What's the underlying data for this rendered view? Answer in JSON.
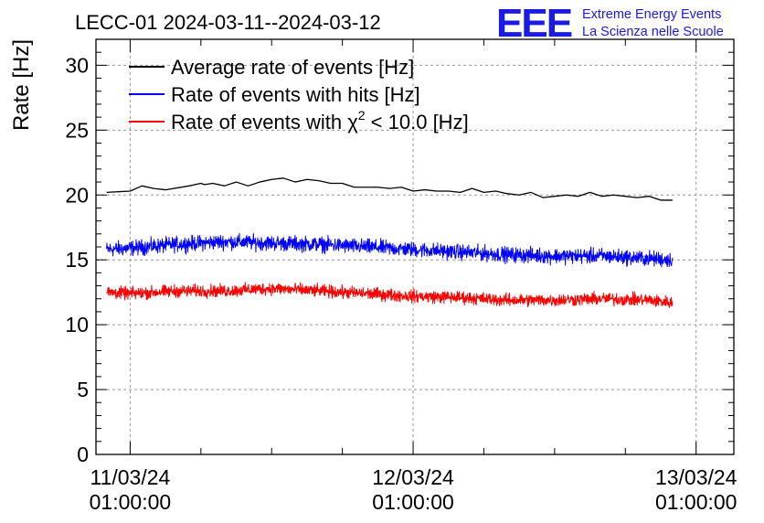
{
  "chart_data": {
    "type": "line",
    "title": "LECC-01 2024-03-11--2024-03-12",
    "ylabel": "Rate [Hz]",
    "xlabel": "",
    "ylim": [
      0,
      32
    ],
    "yticks": [
      0,
      5,
      10,
      15,
      20,
      25,
      30
    ],
    "y_tick_labels": [
      "0",
      "5",
      "10",
      "15",
      "20",
      "25",
      "30"
    ],
    "xlim_hours": [
      -2.9,
      51.2
    ],
    "x_ticks": [
      {
        "hours": 0,
        "date": "11/03/24",
        "time": "01:00:00"
      },
      {
        "hours": 24,
        "date": "12/03/24",
        "time": "01:00:00"
      },
      {
        "hours": 48,
        "date": "13/03/24",
        "time": "01:00:00"
      }
    ],
    "grid": true,
    "legend_position": "top-left",
    "series": [
      {
        "name": "Average rate of events [Hz]",
        "color": "#000000",
        "style": "smooth",
        "hours": [
          -2,
          0,
          1,
          2,
          3,
          5,
          6,
          6.3,
          7,
          8,
          9,
          10,
          11,
          12,
          13,
          14,
          15,
          16,
          17,
          18,
          19,
          20,
          21,
          22,
          23,
          24,
          25,
          26,
          27,
          28,
          29,
          30,
          31,
          32,
          33,
          34,
          35,
          36,
          37,
          38,
          39,
          40,
          41,
          42,
          43,
          44,
          45,
          46
        ],
        "values": [
          20.2,
          20.3,
          20.7,
          20.5,
          20.4,
          20.7,
          20.9,
          20.8,
          20.9,
          20.7,
          21.0,
          20.7,
          21.0,
          21.2,
          21.3,
          21.0,
          21.2,
          21.1,
          20.9,
          20.9,
          20.6,
          20.6,
          20.6,
          20.5,
          20.6,
          20.3,
          20.4,
          20.3,
          20.3,
          20.2,
          20.5,
          20.2,
          20.3,
          20.1,
          20.0,
          20.2,
          19.8,
          19.9,
          20.0,
          19.9,
          20.2,
          19.9,
          20.0,
          19.9,
          19.8,
          19.9,
          19.6,
          19.6
        ]
      },
      {
        "name": "Rate of events with hits [Hz]",
        "color": "#0000ff",
        "style": "noisy",
        "noise": 0.85,
        "hours": [
          -2,
          0,
          4,
          8,
          12,
          16,
          20,
          24,
          28,
          32,
          36,
          40,
          44,
          46
        ],
        "values": [
          15.8,
          15.9,
          16.2,
          16.4,
          16.3,
          16.2,
          16.0,
          15.8,
          15.6,
          15.4,
          15.3,
          15.3,
          15.1,
          15.0
        ]
      },
      {
        "name": "Rate of events with χ2 < 10.0 [Hz]",
        "color": "#ff0000",
        "style": "noisy",
        "noise": 0.7,
        "hours": [
          -2,
          0,
          4,
          8,
          12,
          16,
          20,
          24,
          28,
          32,
          36,
          40,
          44,
          46
        ],
        "values": [
          12.5,
          12.4,
          12.6,
          12.6,
          12.8,
          12.6,
          12.4,
          12.2,
          12.1,
          11.9,
          11.9,
          12.0,
          11.9,
          11.7
        ]
      }
    ],
    "legend": [
      {
        "prefix": "Average rate of events [Hz]",
        "sup": "",
        "suffix": ""
      },
      {
        "prefix": "Rate of events with hits [Hz]",
        "sup": "",
        "suffix": ""
      },
      {
        "prefix": "Rate of events with χ",
        "sup": "2",
        "suffix": " < 10.0 [Hz]"
      }
    ]
  },
  "logo": {
    "text": "EEE",
    "color": "#1a1ae6",
    "line1": "Extreme Energy Events",
    "line2": "La Scienza nelle Scuole"
  }
}
